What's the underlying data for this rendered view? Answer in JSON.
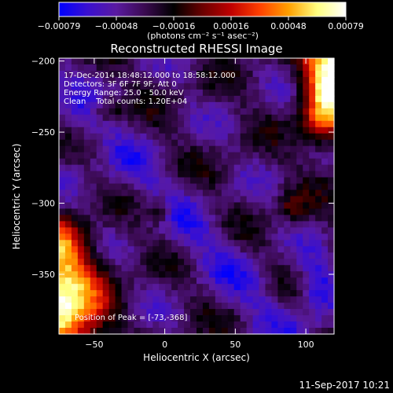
{
  "chart_data": {
    "type": "heatmap",
    "title": "Reconstructed RHESSI Image",
    "xlabel": "Heliocentric X (arcsec)",
    "ylabel": "Heliocentric Y (arcsec)",
    "xlim": [
      -75,
      120
    ],
    "ylim": [
      -392,
      -198
    ],
    "x_ticks": [
      -50,
      0,
      50,
      100
    ],
    "y_ticks": [
      -200,
      -250,
      -300,
      -350
    ],
    "x_tick_labels": [
      "−50",
      "0",
      "50",
      "100"
    ],
    "y_tick_labels": [
      "−200",
      "−250",
      "−300",
      "−350"
    ],
    "colorbar": {
      "min": -0.00079,
      "max": 0.00079,
      "tick_labels": [
        "−0.00079",
        "−0.00048",
        "−0.00016",
        "0.00016",
        "0.00048",
        "0.00079"
      ],
      "units_label": "(photons cm⁻² s⁻¹ asec⁻²)",
      "colormap": [
        "#0000ff",
        "#3a10d0",
        "#5a1aa0",
        "#3a0a50",
        "#000000",
        "#6a0000",
        "#c00000",
        "#ff4000",
        "#ffa000",
        "#ffff80",
        "#ffffff"
      ]
    },
    "info_lines": [
      "17-Dec-2014 18:48:12.000 to 18:58:12.000",
      "Detectors: 3F 6F 7F 9F, Att 0",
      "Energy Range: 25.0 - 50.0 keV",
      "Clean    Total counts: 1.20E+04"
    ],
    "peak_label": "Position of Peak = [-73,-368]",
    "peak_position": [
      -73,
      -368
    ],
    "grid": false
  },
  "footer": {
    "timestamp": "11-Sep-2017 10:21"
  }
}
